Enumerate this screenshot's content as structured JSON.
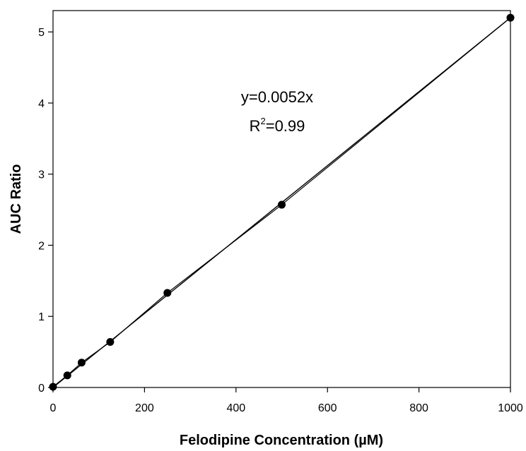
{
  "chart_data": {
    "type": "scatter",
    "x": [
      0,
      31.25,
      62.5,
      125,
      250,
      500,
      1000
    ],
    "y": [
      0.01,
      0.17,
      0.35,
      0.64,
      1.33,
      2.57,
      5.2
    ],
    "series": [
      {
        "x": [
          0,
          31.25,
          62.5,
          125,
          250,
          500,
          1000
        ],
        "y": [
          0.01,
          0.17,
          0.35,
          0.64,
          1.33,
          2.57,
          5.2
        ],
        "marker": "filled-circle",
        "connected": true
      }
    ],
    "fit": {
      "type": "linear-through-origin",
      "slope": 0.0052
    },
    "annotation": {
      "equation": "y=0.0052x",
      "r2_prefix": "R",
      "r2_exponent": "2",
      "r2_value": "=0.99"
    },
    "title": "",
    "xlabel": "Felodipine Concentration (µM)",
    "ylabel": "AUC Ratio",
    "xlim": [
      0,
      1000
    ],
    "ylim": [
      0,
      5.3
    ],
    "xticks": [
      0,
      200,
      400,
      600,
      800,
      1000
    ],
    "yticks": [
      0,
      1,
      2,
      3,
      4,
      5
    ],
    "grid": false,
    "legend": "none",
    "colors": {
      "line": "#000000",
      "marker": "#000000"
    }
  }
}
